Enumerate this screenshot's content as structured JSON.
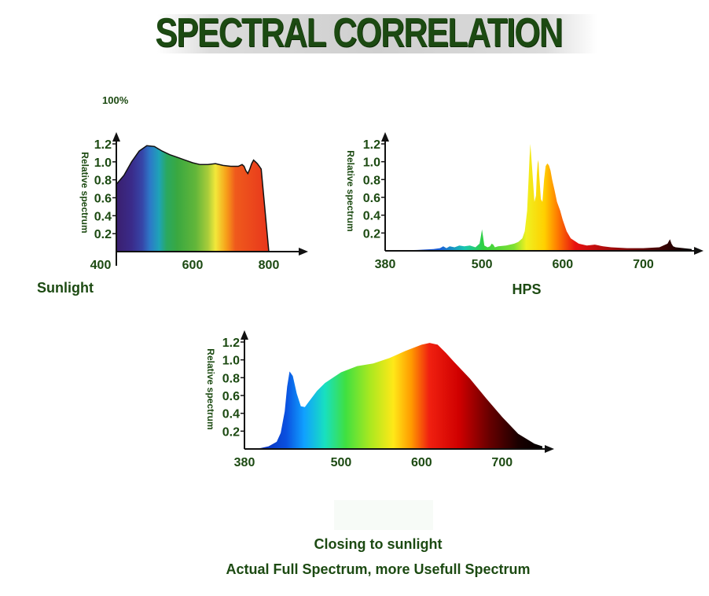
{
  "header": {
    "title": "SPECTRAL CORRELATION"
  },
  "chart_data": [
    {
      "type": "area",
      "name": "Sunlight",
      "caption": "Sunlight",
      "corner_label": "100%",
      "ylabel": "Relative spectrum",
      "xlim": [
        400,
        850
      ],
      "ylim": [
        0,
        1.3
      ],
      "x_ticks": [
        400,
        600,
        800
      ],
      "y_ticks": [
        0.2,
        0.4,
        0.6,
        0.8,
        1.0,
        1.2
      ],
      "x": [
        400,
        420,
        440,
        460,
        480,
        500,
        520,
        540,
        560,
        580,
        600,
        620,
        640,
        660,
        680,
        700,
        720,
        730,
        735,
        740,
        745,
        750,
        755,
        760,
        765,
        770,
        775,
        780,
        800
      ],
      "values": [
        0.75,
        0.85,
        1.0,
        1.12,
        1.18,
        1.17,
        1.12,
        1.08,
        1.05,
        1.02,
        0.99,
        0.97,
        0.97,
        0.98,
        0.96,
        0.95,
        0.95,
        0.97,
        0.95,
        0.9,
        0.87,
        0.92,
        0.98,
        1.02,
        1.0,
        0.98,
        0.95,
        0.92,
        0.0
      ]
    },
    {
      "type": "area",
      "name": "HPS",
      "caption": "HPS",
      "ylabel": "Relative spectrum",
      "xlim": [
        380,
        760
      ],
      "ylim": [
        0,
        1.3
      ],
      "x_ticks": [
        380,
        500,
        600,
        700
      ],
      "y_ticks": [
        0.2,
        0.4,
        0.6,
        0.8,
        1.0,
        1.2
      ],
      "x": [
        380,
        420,
        440,
        448,
        452,
        456,
        460,
        466,
        472,
        478,
        485,
        492,
        497,
        499,
        500,
        501,
        503,
        507,
        510,
        512,
        514,
        516,
        520,
        530,
        540,
        545,
        550,
        553,
        556,
        558,
        559,
        560,
        562,
        565,
        567,
        568,
        569,
        570,
        571,
        573,
        575,
        577,
        579,
        581,
        583,
        585,
        587,
        590,
        593,
        597,
        600,
        605,
        610,
        620,
        630,
        640,
        650,
        660,
        680,
        700,
        720,
        730,
        733,
        735,
        737,
        740,
        760
      ],
      "values": [
        0.0,
        0.01,
        0.02,
        0.03,
        0.05,
        0.03,
        0.05,
        0.04,
        0.06,
        0.05,
        0.06,
        0.04,
        0.08,
        0.18,
        0.24,
        0.18,
        0.06,
        0.04,
        0.05,
        0.08,
        0.07,
        0.04,
        0.05,
        0.06,
        0.08,
        0.1,
        0.14,
        0.22,
        0.45,
        0.85,
        1.05,
        1.2,
        0.95,
        0.55,
        0.62,
        0.85,
        0.98,
        1.02,
        0.85,
        0.58,
        0.55,
        0.8,
        0.95,
        0.98,
        0.96,
        0.9,
        0.8,
        0.68,
        0.55,
        0.45,
        0.35,
        0.22,
        0.14,
        0.08,
        0.06,
        0.07,
        0.05,
        0.04,
        0.03,
        0.03,
        0.04,
        0.08,
        0.13,
        0.08,
        0.05,
        0.04,
        0.02
      ]
    },
    {
      "type": "area",
      "name": "Full Spectrum",
      "ylabel": "Relative spectrum",
      "xlim": [
        380,
        770
      ],
      "ylim": [
        0,
        1.3
      ],
      "x_ticks": [
        380,
        500,
        600,
        700
      ],
      "y_ticks": [
        0.2,
        0.4,
        0.6,
        0.8,
        1.0,
        1.2
      ],
      "x": [
        380,
        400,
        410,
        420,
        425,
        430,
        433,
        436,
        440,
        445,
        450,
        455,
        460,
        470,
        480,
        490,
        500,
        520,
        540,
        560,
        580,
        600,
        610,
        620,
        630,
        640,
        660,
        680,
        700,
        720,
        740,
        750
      ],
      "values": [
        0.0,
        0.01,
        0.03,
        0.08,
        0.18,
        0.42,
        0.7,
        0.87,
        0.82,
        0.62,
        0.48,
        0.47,
        0.53,
        0.65,
        0.74,
        0.8,
        0.86,
        0.93,
        0.96,
        1.02,
        1.1,
        1.17,
        1.19,
        1.17,
        1.08,
        0.98,
        0.79,
        0.57,
        0.36,
        0.17,
        0.06,
        0.03
      ]
    }
  ],
  "footer": {
    "line1": "Closing to sunlight",
    "line2": "Actual Full Spectrum, more Usefull Spectrum"
  }
}
